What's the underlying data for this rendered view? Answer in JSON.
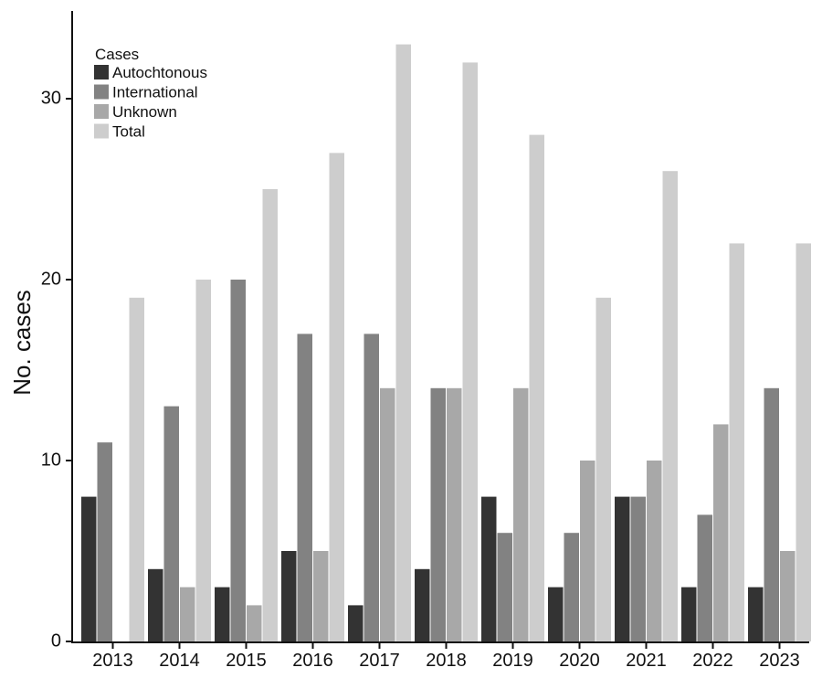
{
  "chart_data": {
    "type": "bar",
    "title": "",
    "xlabel": "",
    "ylabel": "No. cases",
    "ylim": [
      0,
      34
    ],
    "yticks": [
      0,
      10,
      20,
      30
    ],
    "grid": false,
    "legend": {
      "title": "Cases",
      "placement": "top-left"
    },
    "categories": [
      "2013",
      "2014",
      "2015",
      "2016",
      "2017",
      "2018",
      "2019",
      "2020",
      "2021",
      "2022",
      "2023"
    ],
    "series": [
      {
        "name": "Autochtonous",
        "color": "#333333",
        "values": [
          8,
          4,
          3,
          5,
          2,
          4,
          8,
          3,
          8,
          3,
          3
        ]
      },
      {
        "name": "International",
        "color": "#828282",
        "values": [
          11,
          13,
          20,
          17,
          17,
          14,
          6,
          6,
          8,
          7,
          14
        ]
      },
      {
        "name": "Unknown",
        "color": "#a8a8a8",
        "values": [
          0,
          3,
          2,
          5,
          14,
          14,
          14,
          10,
          10,
          12,
          5
        ]
      },
      {
        "name": "Total",
        "color": "#cdcdcd",
        "values": [
          19,
          20,
          25,
          27,
          33,
          32,
          28,
          19,
          26,
          22,
          22
        ]
      }
    ]
  }
}
